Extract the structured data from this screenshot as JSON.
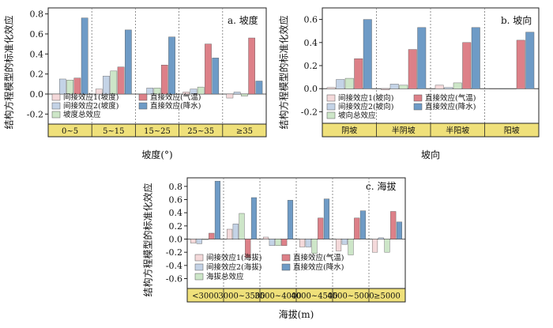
{
  "colors": {
    "indirect1": "#f4d9da",
    "indirect2": "#c4d3e6",
    "total": "#cde6c8",
    "direct_temp": "#dd8088",
    "direct_prec": "#6e9bc6",
    "category_band": "#efe07a",
    "axis": "#222222",
    "divider": "#777777"
  },
  "chart_data": [
    {
      "type": "bar",
      "panel_label": "a. 坡度",
      "xlabel": "坡度(°)",
      "ylabel": "结构方程模型的标准化效应",
      "ylim": [
        -0.3,
        0.86
      ],
      "yticks": [
        -0.2,
        0.0,
        0.2,
        0.4,
        0.6,
        0.8
      ],
      "categories": [
        "0~5",
        "5~15",
        "15~25",
        "25~35",
        "≥35"
      ],
      "series": [
        {
          "name": "间接效应1(坡度)",
          "key": "indirect1",
          "values": [
            0.0,
            0.05,
            0.0,
            0.02,
            -0.04
          ]
        },
        {
          "name": "间接效应2(坡度)",
          "key": "indirect2",
          "values": [
            0.15,
            0.18,
            0.06,
            0.05,
            0.02
          ]
        },
        {
          "name": "坡度总效应",
          "key": "total",
          "values": [
            0.14,
            0.23,
            0.06,
            0.07,
            -0.02
          ]
        },
        {
          "name": "直接效应(气温)",
          "key": "direct_temp",
          "values": [
            0.16,
            0.27,
            0.29,
            0.5,
            0.56
          ]
        },
        {
          "name": "直接效应(降水)",
          "key": "direct_prec",
          "values": [
            0.76,
            0.64,
            0.57,
            0.36,
            0.13
          ]
        }
      ],
      "legend": {
        "placement": "bottom-left",
        "columns": 2
      }
    },
    {
      "type": "bar",
      "panel_label": "b. 坡向",
      "xlabel": "坡向",
      "ylabel": "结构方程模型的标准化效应",
      "ylim": [
        -0.3,
        0.7
      ],
      "yticks": [
        -0.2,
        0.0,
        0.2,
        0.4,
        0.6
      ],
      "categories": [
        "阴坡",
        "半阴坡",
        "半阳坡",
        "阳坡"
      ],
      "series": [
        {
          "name": "间接效应1(坡向)",
          "key": "indirect1",
          "values": [
            0.01,
            -0.01,
            0.03,
            0.0
          ]
        },
        {
          "name": "间接效应2(坡向)",
          "key": "indirect2",
          "values": [
            0.08,
            0.04,
            0.01,
            0.0
          ]
        },
        {
          "name": "坡向总效应",
          "key": "total",
          "values": [
            0.09,
            0.03,
            0.05,
            0.0
          ]
        },
        {
          "name": "直接效应(气温)",
          "key": "direct_temp",
          "values": [
            0.26,
            0.34,
            0.4,
            0.42
          ]
        },
        {
          "name": "直接效应(降水)",
          "key": "direct_prec",
          "values": [
            0.6,
            0.53,
            0.53,
            0.49
          ]
        }
      ],
      "legend": {
        "placement": "bottom-left",
        "columns": 2
      }
    },
    {
      "type": "bar",
      "panel_label": "c. 海拔",
      "xlabel": "海拔(m)",
      "ylabel": "结构方程模型的标准化效应",
      "ylim": [
        -0.75,
        0.93
      ],
      "yticks": [
        -0.6,
        -0.4,
        -0.2,
        0.0,
        0.2,
        0.4,
        0.6,
        0.8
      ],
      "categories": [
        "<3000",
        "3000~3500",
        "3500~4000",
        "4000~4500",
        "4500~5000",
        "≥5000"
      ],
      "series": [
        {
          "name": "间接效应1(海拔)",
          "key": "indirect1",
          "values": [
            -0.06,
            0.15,
            0.03,
            -0.12,
            -0.18,
            -0.2
          ]
        },
        {
          "name": "间接效应2(海拔)",
          "key": "indirect2",
          "values": [
            -0.07,
            0.23,
            -0.1,
            -0.12,
            -0.08,
            0.02
          ]
        },
        {
          "name": "海拔总效应",
          "key": "total",
          "values": [
            0.0,
            0.39,
            -0.1,
            -0.22,
            -0.24,
            -0.2
          ]
        },
        {
          "name": "直接效应(气温)",
          "key": "direct_temp",
          "values": [
            0.09,
            -0.28,
            -0.1,
            0.32,
            0.32,
            0.42
          ]
        },
        {
          "name": "直接效应(降水)",
          "key": "direct_prec",
          "values": [
            0.88,
            0.63,
            0.59,
            0.61,
            0.43,
            0.26
          ]
        }
      ],
      "legend": {
        "placement": "bottom-left",
        "columns": 2
      }
    }
  ]
}
